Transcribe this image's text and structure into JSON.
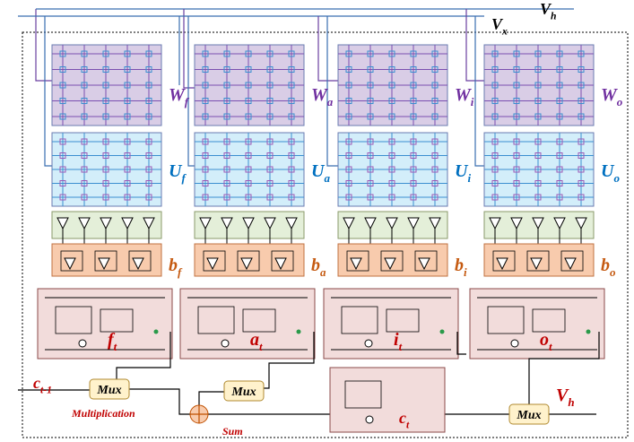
{
  "inputs": {
    "vh": {
      "base": "V",
      "sub": "h"
    },
    "vx": {
      "base": "V",
      "sub": "x"
    }
  },
  "gates": [
    {
      "weight": {
        "base": "W",
        "sub": "f"
      },
      "recurrent": {
        "base": "U",
        "sub": "f"
      },
      "bias": {
        "base": "b",
        "sub": "f"
      },
      "output": {
        "base": "f",
        "sub": "t"
      }
    },
    {
      "weight": {
        "base": "W",
        "sub": "a"
      },
      "recurrent": {
        "base": "U",
        "sub": "a"
      },
      "bias": {
        "base": "b",
        "sub": "a"
      },
      "output": {
        "base": "a",
        "sub": "t"
      }
    },
    {
      "weight": {
        "base": "W",
        "sub": "i"
      },
      "recurrent": {
        "base": "U",
        "sub": "i"
      },
      "bias": {
        "base": "b",
        "sub": "i"
      },
      "output": {
        "base": "i",
        "sub": "t"
      }
    },
    {
      "weight": {
        "base": "W",
        "sub": "o"
      },
      "recurrent": {
        "base": "U",
        "sub": "o"
      },
      "bias": {
        "base": "b",
        "sub": "o"
      },
      "output": {
        "base": "o",
        "sub": "t"
      }
    }
  ],
  "cell_state": {
    "base": "c",
    "sub": "t"
  },
  "previous_cell": {
    "base": "c",
    "sub": "t-1"
  },
  "mux_labels": [
    "Mux",
    "Mux",
    "Mux"
  ],
  "operations": {
    "multiplication": "Multiplication",
    "sum": "Sum"
  },
  "output": {
    "base": "V",
    "sub": "h"
  }
}
